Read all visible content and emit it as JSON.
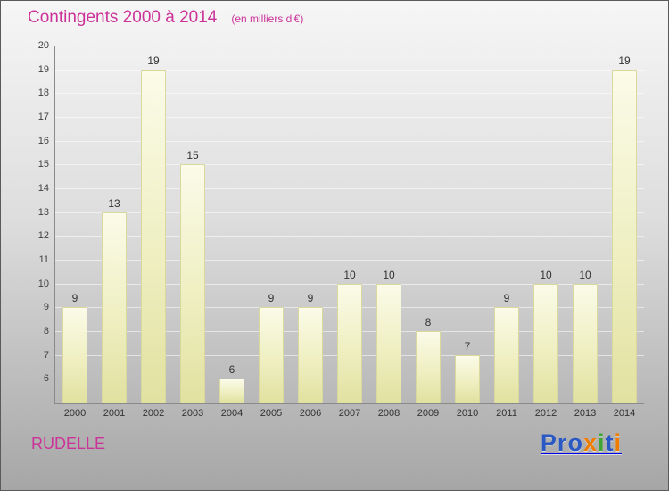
{
  "header": {
    "title": "Contingents 2000 à 2014",
    "subtitle": "(en milliers d'€)"
  },
  "footer": {
    "location": "RUDELLE"
  },
  "logo": {
    "text": "Proxiti",
    "letters": [
      {
        "ch": "P",
        "color": "#2b59c3"
      },
      {
        "ch": "r",
        "color": "#2b59c3"
      },
      {
        "ch": "o",
        "color": "#2b59c3"
      },
      {
        "ch": "x",
        "color": "#f07d00"
      },
      {
        "ch": "i",
        "color": "#3fa535"
      },
      {
        "ch": "t",
        "color": "#2b59c3"
      },
      {
        "ch": "i",
        "color": "#f07d00"
      }
    ]
  },
  "chart_data": {
    "type": "bar",
    "title": "Contingents 2000 à 2014",
    "subtitle": "(en milliers d'€)",
    "categories": [
      "2000",
      "2001",
      "2002",
      "2003",
      "2004",
      "2005",
      "2006",
      "2007",
      "2008",
      "2009",
      "2010",
      "2011",
      "2012",
      "2013",
      "2014"
    ],
    "values": [
      9,
      13,
      19,
      15,
      6,
      9,
      9,
      10,
      10,
      8,
      7,
      9,
      10,
      10,
      19
    ],
    "xlabel": "",
    "ylabel": "",
    "ylim": [
      5,
      20
    ],
    "ytick_step": 1,
    "grid": true,
    "legend": "none",
    "bar_color_top": "#fbfbe9",
    "bar_color_bottom": "#e1e1a0",
    "accent_color": "#cc3399",
    "value_labels": true
  }
}
